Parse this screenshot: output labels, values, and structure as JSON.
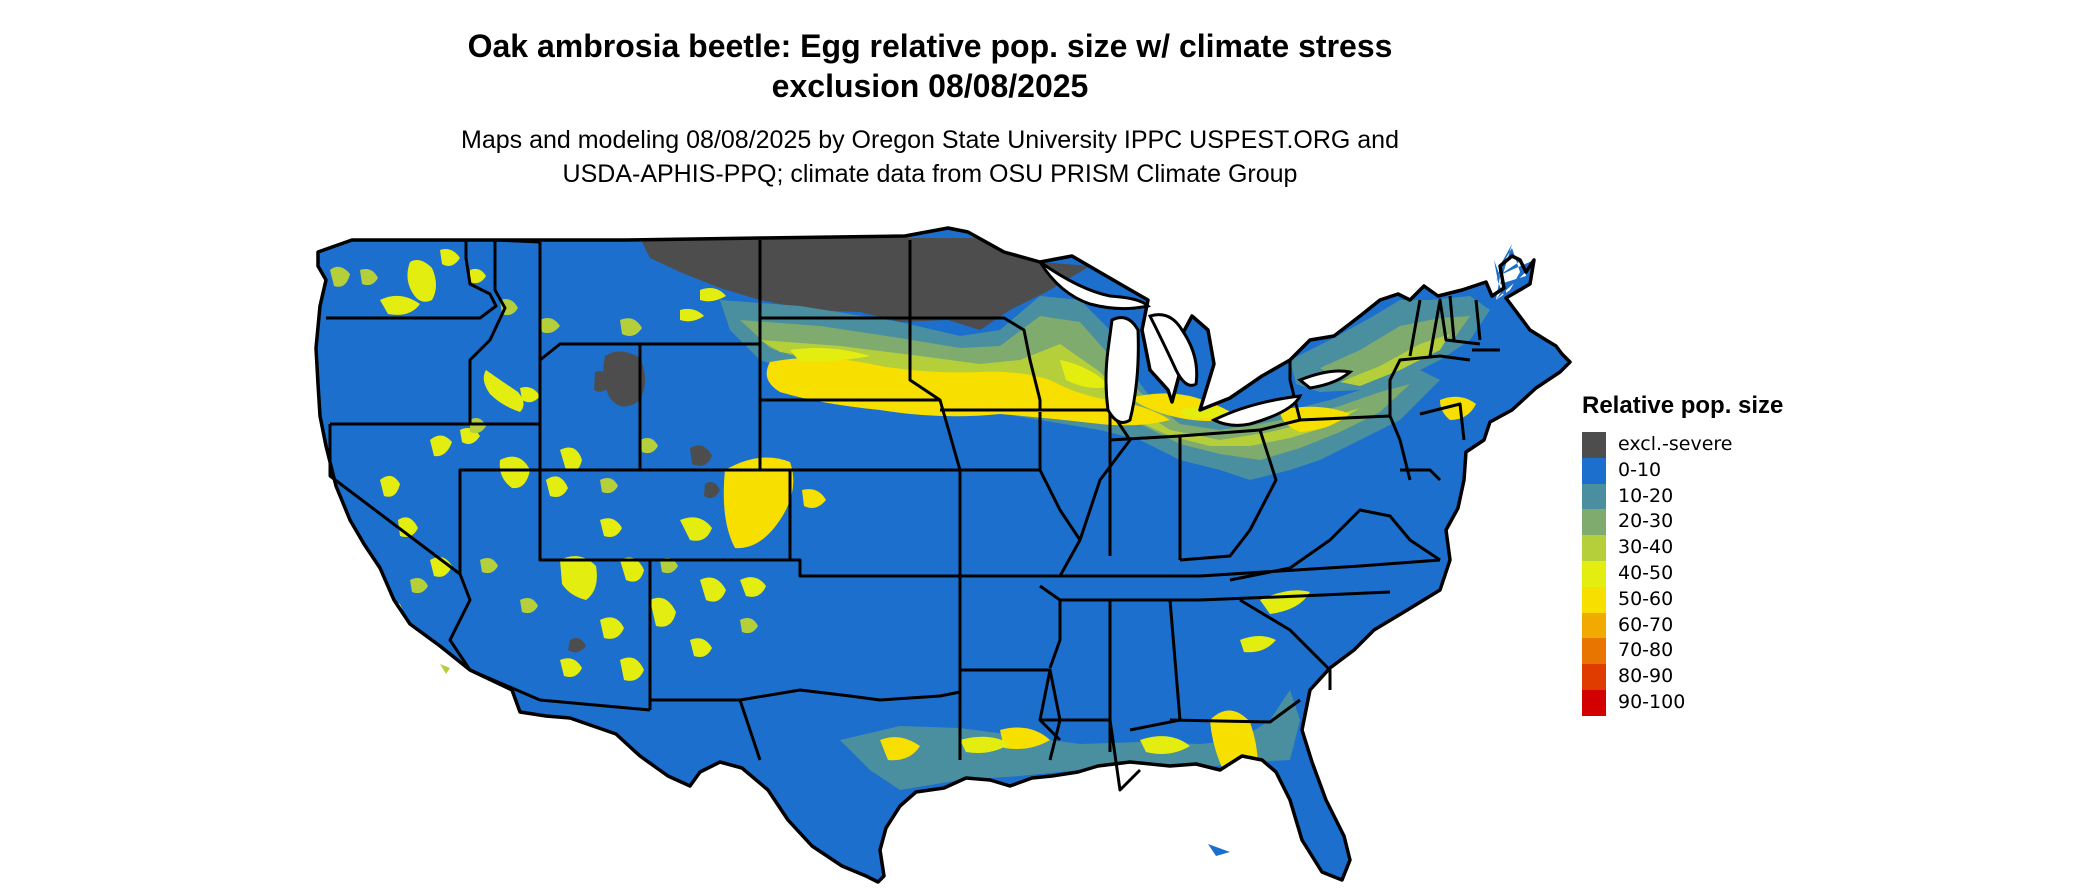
{
  "title": {
    "line1": "Oak ambrosia beetle: Egg relative pop. size w/ climate stress",
    "line2": "exclusion 08/08/2025"
  },
  "subtitle": {
    "line1": "Maps and modeling 08/08/2025 by Oregon State University IPPC USPEST.ORG and",
    "line2": "USDA-APHIS-PPQ; climate data from OSU PRISM Climate Group"
  },
  "legend": {
    "title": "Relative pop. size",
    "items": [
      {
        "label": "excl.-severe",
        "color": "#4d4d4d"
      },
      {
        "label": "0-10",
        "color": "#1c6fcd"
      },
      {
        "label": "10-20",
        "color": "#4a8fa0"
      },
      {
        "label": "20-30",
        "color": "#7fab6e"
      },
      {
        "label": "30-40",
        "color": "#b5cf3a"
      },
      {
        "label": "40-50",
        "color": "#e3ee10"
      },
      {
        "label": "50-60",
        "color": "#f7df00"
      },
      {
        "label": "60-70",
        "color": "#f0aa00"
      },
      {
        "label": "70-80",
        "color": "#e87500"
      },
      {
        "label": "80-90",
        "color": "#e03c00"
      },
      {
        "label": "90-100",
        "color": "#d30000"
      }
    ]
  },
  "map": {
    "region": "Contiguous United States",
    "base_color": "#1c6fcd",
    "excluded_color": "#4d4d4d",
    "border_color": "#000000"
  }
}
